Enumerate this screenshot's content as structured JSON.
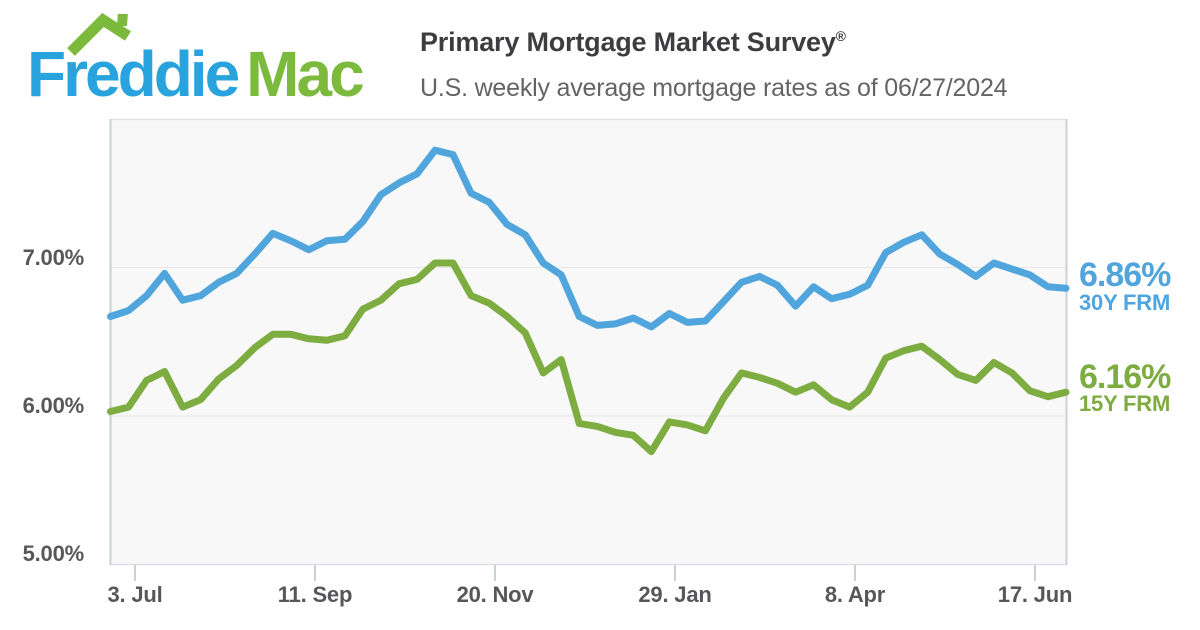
{
  "brand": {
    "logo_primary": "Freddie",
    "logo_secondary": "Mac",
    "colors": {
      "logo_blue": "#29a3dd",
      "logo_green": "#7cba3d"
    }
  },
  "header": {
    "title": "Primary Mortgage Market Survey",
    "registered_mark": "®",
    "subtitle": "U.S. weekly average mortgage rates as of 06/27/2024",
    "as_of_date": "06/27/2024"
  },
  "chart_data": {
    "type": "line",
    "title": "Primary Mortgage Market Survey",
    "frequency": "weekly",
    "x_start_week": "2023-06-22",
    "x_end_week": "2024-06-27",
    "x_tick_labels": [
      "3. Jul",
      "11. Sep",
      "20. Nov",
      "29. Jan",
      "8. Apr",
      "17. Jun"
    ],
    "y_tick_labels": [
      "7.00%",
      "6.00%",
      "5.00%"
    ],
    "y_tick_values": [
      7.0,
      6.0,
      5.0
    ],
    "ylim": [
      5.0,
      8.0
    ],
    "grid": "horizontal",
    "legend_position": "right-edge-annotations",
    "series": [
      {
        "name": "30Y FRM",
        "color": "#51a5dd",
        "latest_value": "6.86%",
        "values": [
          6.67,
          6.71,
          6.81,
          6.96,
          6.78,
          6.81,
          6.9,
          6.96,
          7.09,
          7.23,
          7.18,
          7.12,
          7.18,
          7.19,
          7.31,
          7.49,
          7.57,
          7.63,
          7.79,
          7.76,
          7.5,
          7.44,
          7.29,
          7.22,
          7.03,
          6.95,
          6.67,
          6.61,
          6.62,
          6.66,
          6.6,
          6.69,
          6.63,
          6.64,
          6.77,
          6.9,
          6.94,
          6.88,
          6.74,
          6.87,
          6.79,
          6.82,
          6.88,
          7.1,
          7.17,
          7.22,
          7.09,
          7.02,
          6.94,
          7.03,
          6.99,
          6.95,
          6.87,
          6.86
        ]
      },
      {
        "name": "15Y FRM",
        "color": "#7dac40",
        "latest_value": "6.16%",
        "values": [
          6.03,
          6.06,
          6.24,
          6.3,
          6.06,
          6.11,
          6.25,
          6.34,
          6.46,
          6.55,
          6.55,
          6.52,
          6.51,
          6.54,
          6.72,
          6.78,
          6.89,
          6.92,
          7.03,
          7.03,
          6.81,
          6.76,
          6.67,
          6.56,
          6.29,
          6.38,
          5.95,
          5.93,
          5.89,
          5.87,
          5.76,
          5.96,
          5.94,
          5.9,
          6.12,
          6.29,
          6.26,
          6.22,
          6.16,
          6.21,
          6.11,
          6.06,
          6.16,
          6.39,
          6.44,
          6.47,
          6.38,
          6.28,
          6.24,
          6.36,
          6.29,
          6.17,
          6.13,
          6.16
        ]
      }
    ]
  }
}
